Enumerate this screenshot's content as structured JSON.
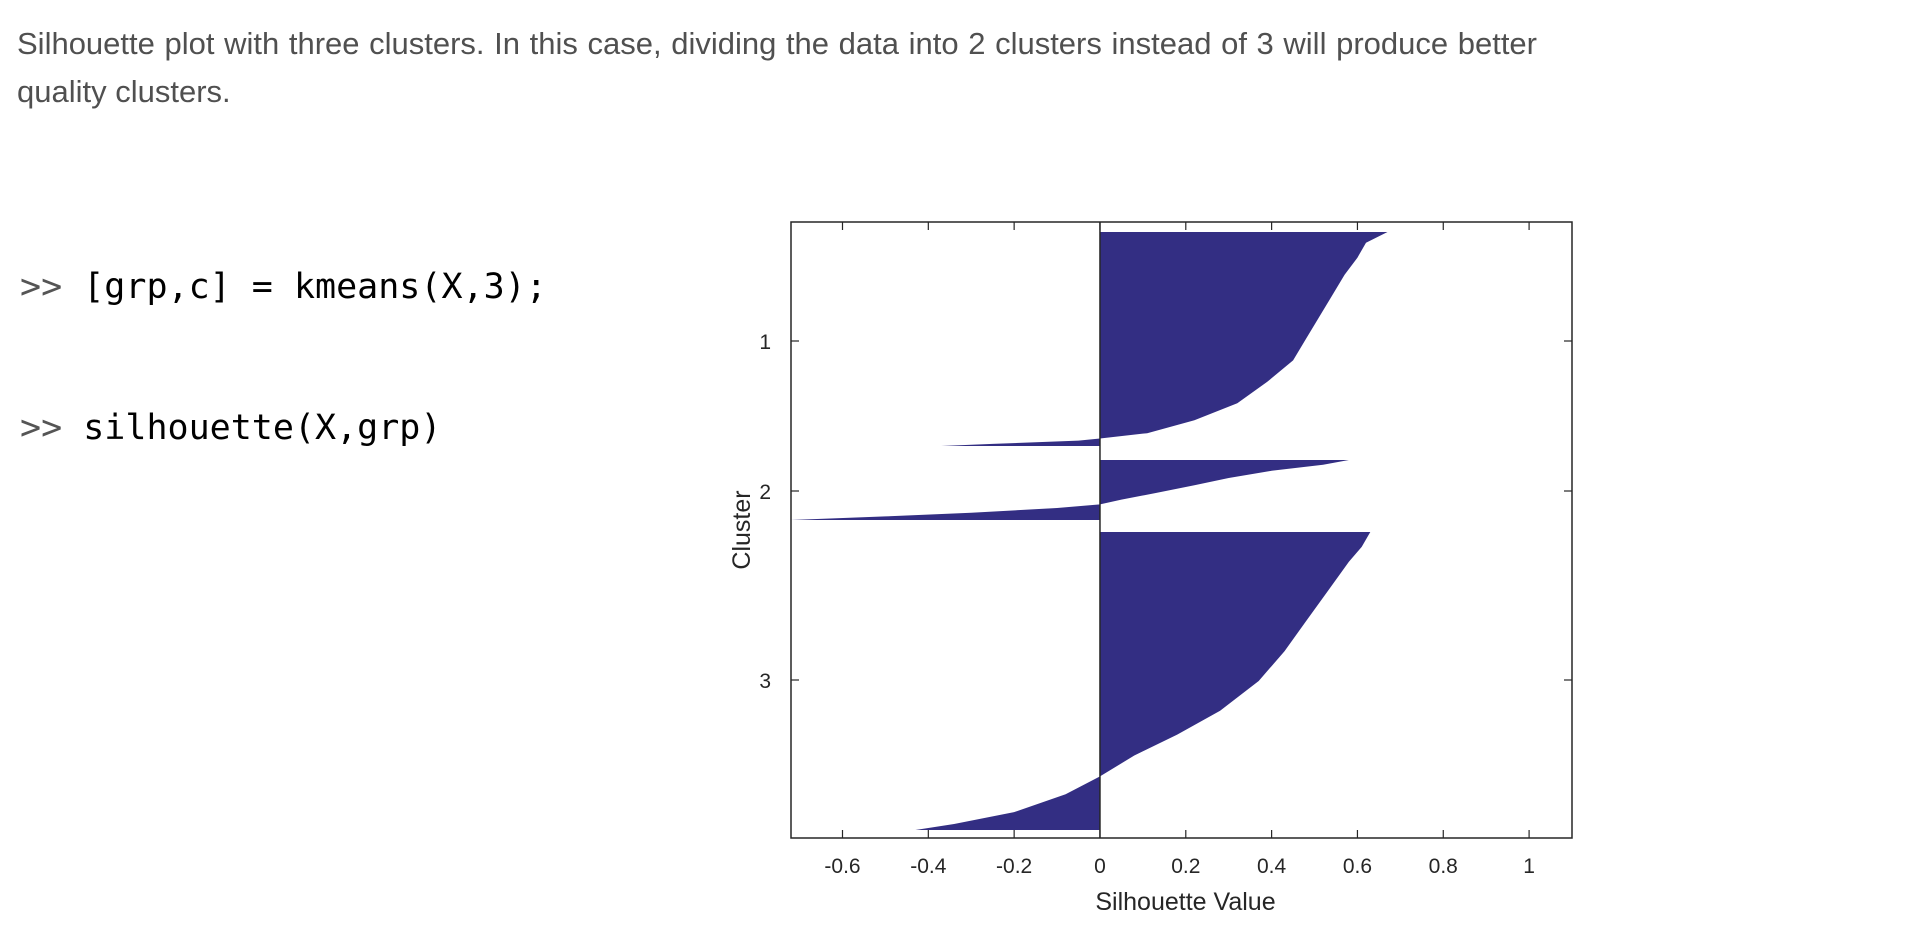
{
  "caption": "Silhouette plot with three clusters. In this case, dividing the data into 2 clusters instead of 3 will produce better quality clusters.",
  "code": {
    "prompt": ">>",
    "lines": [
      "[grp,c] = kmeans(X,3);",
      "silhouette(X,grp)"
    ]
  },
  "colors": {
    "bars": "#332e83",
    "axes": "#262626",
    "text": "#505050"
  },
  "chart_data": {
    "type": "area",
    "orientation": "horizontal",
    "xlabel": "Silhouette Value",
    "ylabel": "Cluster",
    "xlim": [
      -0.72,
      1.1
    ],
    "xticks": [
      -0.6,
      -0.4,
      -0.2,
      0,
      0.2,
      0.4,
      0.6,
      0.8,
      1
    ],
    "xtick_labels": [
      "-0.6",
      "-0.4",
      "-0.2",
      "0",
      "0.2",
      "0.4",
      "0.6",
      "0.8",
      "1"
    ],
    "ytick_labels": [
      "1",
      "2",
      "3"
    ],
    "grid": false,
    "series": [
      {
        "cluster": "1",
        "profile": [
          [
            0.0,
            0.67
          ],
          [
            0.05,
            0.62
          ],
          [
            0.12,
            0.6
          ],
          [
            0.2,
            0.57
          ],
          [
            0.3,
            0.54
          ],
          [
            0.4,
            0.51
          ],
          [
            0.5,
            0.48
          ],
          [
            0.6,
            0.45
          ],
          [
            0.7,
            0.39
          ],
          [
            0.8,
            0.32
          ],
          [
            0.88,
            0.22
          ],
          [
            0.94,
            0.11
          ],
          [
            0.965,
            0.0
          ],
          [
            0.975,
            -0.05
          ],
          [
            0.99,
            -0.25
          ],
          [
            1.0,
            -0.37
          ]
        ]
      },
      {
        "cluster": "2",
        "profile": [
          [
            0.0,
            0.58
          ],
          [
            0.08,
            0.52
          ],
          [
            0.18,
            0.4
          ],
          [
            0.3,
            0.3
          ],
          [
            0.42,
            0.22
          ],
          [
            0.55,
            0.13
          ],
          [
            0.66,
            0.05
          ],
          [
            0.74,
            0.0
          ],
          [
            0.8,
            -0.1
          ],
          [
            0.88,
            -0.3
          ],
          [
            0.94,
            -0.5
          ],
          [
            1.0,
            -0.72
          ]
        ]
      },
      {
        "cluster": "3",
        "profile": [
          [
            0.0,
            0.63
          ],
          [
            0.05,
            0.61
          ],
          [
            0.1,
            0.58
          ],
          [
            0.2,
            0.53
          ],
          [
            0.3,
            0.48
          ],
          [
            0.4,
            0.43
          ],
          [
            0.5,
            0.37
          ],
          [
            0.6,
            0.28
          ],
          [
            0.68,
            0.18
          ],
          [
            0.75,
            0.08
          ],
          [
            0.82,
            0.0
          ],
          [
            0.88,
            -0.08
          ],
          [
            0.94,
            -0.2
          ],
          [
            0.98,
            -0.34
          ],
          [
            1.0,
            -0.43
          ]
        ]
      }
    ]
  }
}
